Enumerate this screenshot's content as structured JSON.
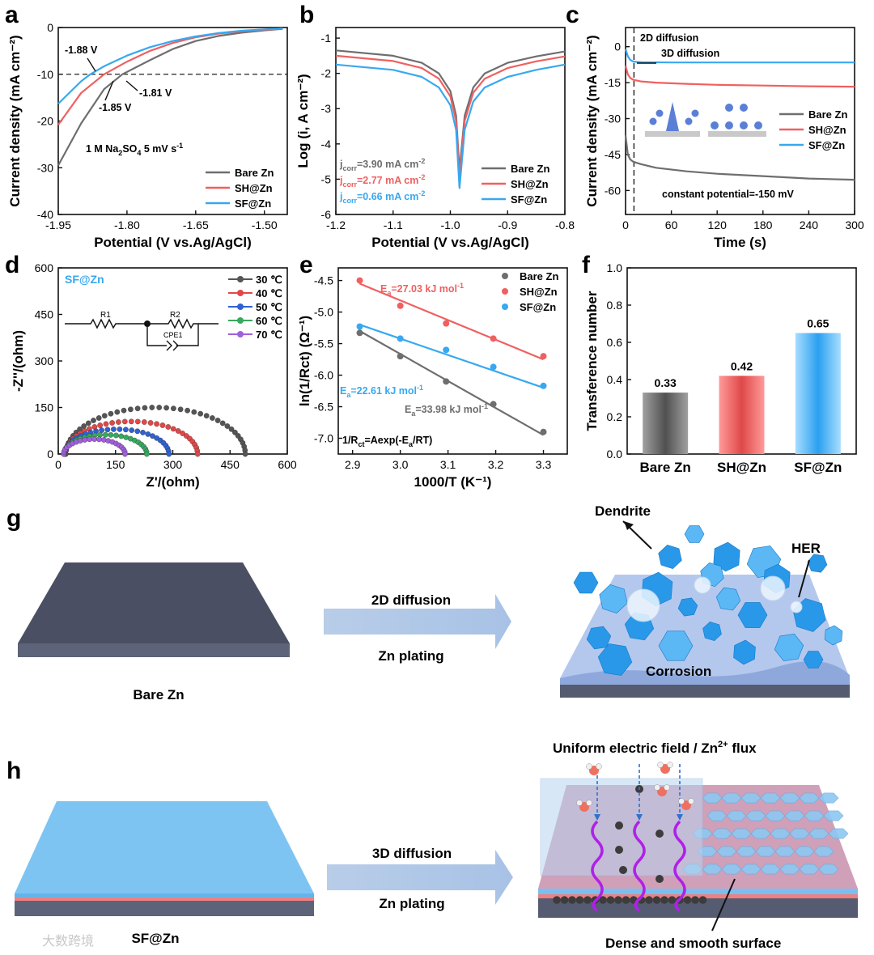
{
  "colors": {
    "bare": "#6e6e6e",
    "sh": "#f06060",
    "sf": "#38a8f0",
    "barDark": "#707070"
  },
  "panels": {
    "a": {
      "label": "a",
      "chart_data": {
        "type": "line",
        "xlabel": "Potential (V vs.Ag/AgCl)",
        "ylabel": "Current density (mA cm⁻²)",
        "xlim": [
          -1.95,
          -1.45
        ],
        "ylim": [
          -40,
          0
        ],
        "xticks": [
          "-1.95",
          "-1.80",
          "-1.65",
          "-1.50"
        ],
        "xtickvals": [
          -1.95,
          -1.8,
          -1.65,
          -1.5
        ],
        "yticks": [
          "0",
          "-10",
          "-20",
          "-30",
          "-40"
        ],
        "ytickvals": [
          0,
          -10,
          -20,
          -30,
          -40
        ],
        "series": [
          {
            "name": "Bare Zn",
            "key": "bare",
            "x": [
              -1.95,
              -1.9,
              -1.85,
              -1.81,
              -1.75,
              -1.7,
              -1.65,
              -1.6,
              -1.55,
              -1.5,
              -1.46
            ],
            "y": [
              -29.5,
              -20.5,
              -13.2,
              -10,
              -7,
              -4.6,
              -2.9,
              -1.8,
              -1.1,
              -0.6,
              -0.3
            ]
          },
          {
            "name": "SH@Zn",
            "key": "sh",
            "x": [
              -1.95,
              -1.9,
              -1.85,
              -1.8,
              -1.75,
              -1.7,
              -1.65,
              -1.6,
              -1.55,
              -1.5,
              -1.46
            ],
            "y": [
              -20.8,
              -14,
              -10,
              -7.3,
              -5,
              -3.3,
              -2.1,
              -1.3,
              -0.8,
              -0.45,
              -0.25
            ]
          },
          {
            "name": "SF@Zn",
            "key": "sf",
            "x": [
              -1.95,
              -1.9,
              -1.88,
              -1.85,
              -1.8,
              -1.75,
              -1.7,
              -1.65,
              -1.6,
              -1.55,
              -1.5,
              -1.46
            ],
            "y": [
              -16.3,
              -11.5,
              -10,
              -8.3,
              -6,
              -4.2,
              -2.9,
              -1.9,
              -1.2,
              -0.7,
              -0.4,
              -0.2
            ]
          }
        ],
        "annotations": [
          "-1.88 V",
          "-1.81 V",
          "-1.85 V"
        ],
        "note_main": "1 M Na",
        "note_sub": "2",
        "note_rest": "SO",
        "note_sub2": "4",
        "note_tail": "  5 mV s",
        "note_sup": "-1",
        "legend": [
          "Bare Zn",
          "SH@Zn",
          "SF@Zn"
        ]
      }
    },
    "b": {
      "label": "b",
      "chart_data": {
        "type": "line",
        "xlabel": "Potential (V vs.Ag/AgCl)",
        "ylabel": "Log (i, A cm⁻²)",
        "xlim": [
          -1.2,
          -0.8
        ],
        "ylim": [
          -6,
          -0.7
        ],
        "xticks": [
          "-1.2",
          "-1.1",
          "-1.0",
          "-0.9",
          "-0.8"
        ],
        "xtickvals": [
          -1.2,
          -1.1,
          -1.0,
          -0.9,
          -0.8
        ],
        "yticks": [
          "-1",
          "-2",
          "-3",
          "-4",
          "-5",
          "-6"
        ],
        "ytickvals": [
          -1,
          -2,
          -3,
          -4,
          -5,
          -6
        ],
        "series": [
          {
            "name": "Bare Zn",
            "key": "bare",
            "x": [
              -1.2,
              -1.1,
              -1.05,
              -1.02,
              -1.0,
              -0.99,
              -0.984,
              -0.975,
              -0.96,
              -0.94,
              -0.9,
              -0.85,
              -0.8
            ],
            "y": [
              -1.35,
              -1.5,
              -1.7,
              -2.0,
              -2.5,
              -3.2,
              -4.75,
              -3.2,
              -2.4,
              -2.0,
              -1.7,
              -1.52,
              -1.38
            ]
          },
          {
            "name": "SH@Zn",
            "key": "sh",
            "x": [
              -1.2,
              -1.1,
              -1.05,
              -1.02,
              -1.0,
              -0.99,
              -0.984,
              -0.975,
              -0.96,
              -0.94,
              -0.9,
              -0.85,
              -0.8
            ],
            "y": [
              -1.5,
              -1.65,
              -1.85,
              -2.15,
              -2.65,
              -3.35,
              -4.95,
              -3.35,
              -2.55,
              -2.15,
              -1.85,
              -1.66,
              -1.52
            ]
          },
          {
            "name": "SF@Zn",
            "key": "sf",
            "x": [
              -1.2,
              -1.1,
              -1.05,
              -1.02,
              -1.0,
              -0.99,
              -0.984,
              -0.975,
              -0.96,
              -0.94,
              -0.9,
              -0.85,
              -0.8
            ],
            "y": [
              -1.75,
              -1.9,
              -2.1,
              -2.4,
              -2.9,
              -3.6,
              -5.25,
              -3.6,
              -2.8,
              -2.4,
              -2.1,
              -1.9,
              -1.75
            ]
          }
        ],
        "jcorr": [
          {
            "key": "bare",
            "text": "=3.90 mA cm"
          },
          {
            "key": "sh",
            "text": "=2.77 mA cm"
          },
          {
            "key": "sf",
            "text": "=0.66 mA cm"
          }
        ],
        "jcorr_prefix": "j",
        "jcorr_sub": "corr",
        "jcorr_sup": "-2",
        "legend": [
          "Bare Zn",
          "SH@Zn",
          "SF@Zn"
        ]
      }
    },
    "c": {
      "label": "c",
      "chart_data": {
        "type": "line",
        "xlabel": "Time (s)",
        "ylabel": "Current density (mA cm⁻²)",
        "xlim": [
          0,
          300
        ],
        "ylim": [
          -70,
          8
        ],
        "xticks": [
          "0",
          "60",
          "120",
          "180",
          "240",
          "300"
        ],
        "xtickvals": [
          0,
          60,
          120,
          180,
          240,
          300
        ],
        "yticks": [
          "0",
          "-15",
          "-30",
          "-45",
          "-60"
        ],
        "ytickvals": [
          0,
          -15,
          -30,
          -45,
          -60
        ],
        "series": [
          {
            "name": "Bare Zn",
            "key": "bare",
            "x": [
              0,
              3,
              6,
              10,
              20,
              40,
              80,
              120,
              180,
              240,
              300
            ],
            "y": [
              -37,
              -45,
              -47,
              -48,
              -49,
              -50.5,
              -52,
              -53,
              -54,
              -55,
              -55.5
            ]
          },
          {
            "name": "SH@Zn",
            "key": "sh",
            "x": [
              0,
              3,
              6,
              10,
              20,
              40,
              80,
              120,
              180,
              240,
              300
            ],
            "y": [
              -8,
              -11.5,
              -13,
              -13.8,
              -14.5,
              -15,
              -15.5,
              -15.9,
              -16.2,
              -16.5,
              -16.7
            ]
          },
          {
            "name": "SF@Zn",
            "key": "sf",
            "x": [
              0,
              3,
              6,
              10,
              20,
              60,
              120,
              180,
              240,
              300
            ],
            "y": [
              -1,
              -4,
              -5.5,
              -6.2,
              -6.5,
              -6.6,
              -6.6,
              -6.6,
              -6.6,
              -6.6
            ]
          }
        ],
        "annotations": [
          "2D diffusion",
          "3D diffusion",
          "constant potential=-150 mV"
        ],
        "legend": [
          "Bare Zn",
          "SH@Zn",
          "SF@Zn"
        ]
      }
    },
    "d": {
      "label": "d",
      "chart_data": {
        "type": "scatter",
        "xlabel": "Z'/(ohm)",
        "ylabel": "-Z''/(ohm)",
        "xlim": [
          0,
          600
        ],
        "ylim": [
          0,
          600
        ],
        "xticks": [
          "0",
          "150",
          "300",
          "450",
          "600"
        ],
        "xtickvals": [
          0,
          150,
          300,
          450,
          600
        ],
        "yticks": [
          "0",
          "150",
          "300",
          "450",
          "600"
        ],
        "ytickvals": [
          0,
          150,
          300,
          450,
          600
        ],
        "title": "SF@Zn",
        "series": [
          {
            "name": "30 ℃",
            "color": "#555555",
            "x0": 20,
            "x1": 490,
            "h": 150
          },
          {
            "name": "40 ℃",
            "color": "#e04848",
            "x0": 18,
            "x1": 365,
            "h": 105
          },
          {
            "name": "50 ℃",
            "color": "#2f62d0",
            "x0": 16,
            "x1": 290,
            "h": 80
          },
          {
            "name": "60 ℃",
            "color": "#38a860",
            "x0": 15,
            "x1": 232,
            "h": 62
          },
          {
            "name": "70 ℃",
            "color": "#a060d8",
            "x0": 14,
            "x1": 175,
            "h": 48
          }
        ],
        "circuit": [
          "R1",
          "R2",
          "CPE1"
        ]
      }
    },
    "e": {
      "label": "e",
      "chart_data": {
        "type": "scatter",
        "xlabel": "1000/T (K⁻¹)",
        "ylabel": "ln(1/Rct) (Ω⁻¹)",
        "xlim": [
          2.87,
          3.35
        ],
        "ylim": [
          -7.25,
          -4.3
        ],
        "xticks": [
          "2.9",
          "3.0",
          "3.1",
          "3.2",
          "3.3"
        ],
        "xtickvals": [
          2.9,
          3.0,
          3.1,
          3.2,
          3.3
        ],
        "yticks": [
          "-4.5",
          "-5.0",
          "-5.5",
          "-6.0",
          "-6.5",
          "-7.0"
        ],
        "ytickvals": [
          -4.5,
          -5.0,
          -5.5,
          -6.0,
          -6.5,
          -7.0
        ],
        "series": [
          {
            "name": "Bare Zn",
            "key": "bare",
            "x": [
              2.915,
              3.0,
              3.096,
              3.195,
              3.3
            ],
            "y": [
              -5.33,
              -5.7,
              -6.1,
              -6.46,
              -6.9
            ],
            "fit": [
              -5.3,
              -6.95
            ],
            "ea": "=33.98 kJ mol"
          },
          {
            "name": "SH@Zn",
            "key": "sh",
            "x": [
              2.915,
              3.0,
              3.096,
              3.195,
              3.3
            ],
            "y": [
              -4.5,
              -4.9,
              -5.18,
              -5.42,
              -5.7
            ],
            "fit": [
              -4.55,
              -5.75
            ],
            "ea": "=27.03 kJ mol"
          },
          {
            "name": "SF@Zn",
            "key": "sf",
            "x": [
              2.915,
              3.0,
              3.096,
              3.195,
              3.3
            ],
            "y": [
              -5.23,
              -5.42,
              -5.6,
              -5.87,
              -6.17
            ],
            "fit": [
              -5.2,
              -6.2
            ],
            "ea": "=22.61 kJ mol"
          }
        ],
        "ea_prefix": "E",
        "ea_sub": "a",
        "ea_sup": "-1",
        "equation": "1/R",
        "equation_sub": "ct",
        "equation_rest": "=Aexp(-E",
        "equation_sub2": "a",
        "equation_tail": "/RT)"
      }
    },
    "f": {
      "label": "f",
      "chart_data": {
        "type": "bar",
        "ylabel": "Transference number",
        "ylim": [
          0,
          1
        ],
        "yticks": [
          "0.0",
          "0.2",
          "0.4",
          "0.6",
          "0.8",
          "1.0"
        ],
        "ytickvals": [
          0,
          0.2,
          0.4,
          0.6,
          0.8,
          1.0
        ],
        "categories": [
          "Bare Zn",
          "SH@Zn",
          "SF@Zn"
        ],
        "values": [
          0.33,
          0.42,
          0.65
        ],
        "value_labels": [
          "0.33",
          "0.42",
          "0.65"
        ],
        "keys": [
          "bare",
          "sh",
          "sf"
        ]
      }
    },
    "g": {
      "label": "g",
      "left_caption": "Bare Zn",
      "arrow_top": "2D diffusion",
      "arrow_bottom": "Zn plating",
      "callouts": [
        "Dendrite",
        "HER",
        "Corrosion"
      ]
    },
    "h": {
      "label": "h",
      "left_caption": "SF@Zn",
      "arrow_top": "3D diffusion",
      "arrow_bottom": "Zn plating",
      "callout_top": "Uniform electric field / Zn",
      "callout_top_sup": "2+",
      "callout_top_tail": " flux",
      "callout_bottom": "Dense and smooth surface"
    }
  },
  "watermark": "大数跨境"
}
